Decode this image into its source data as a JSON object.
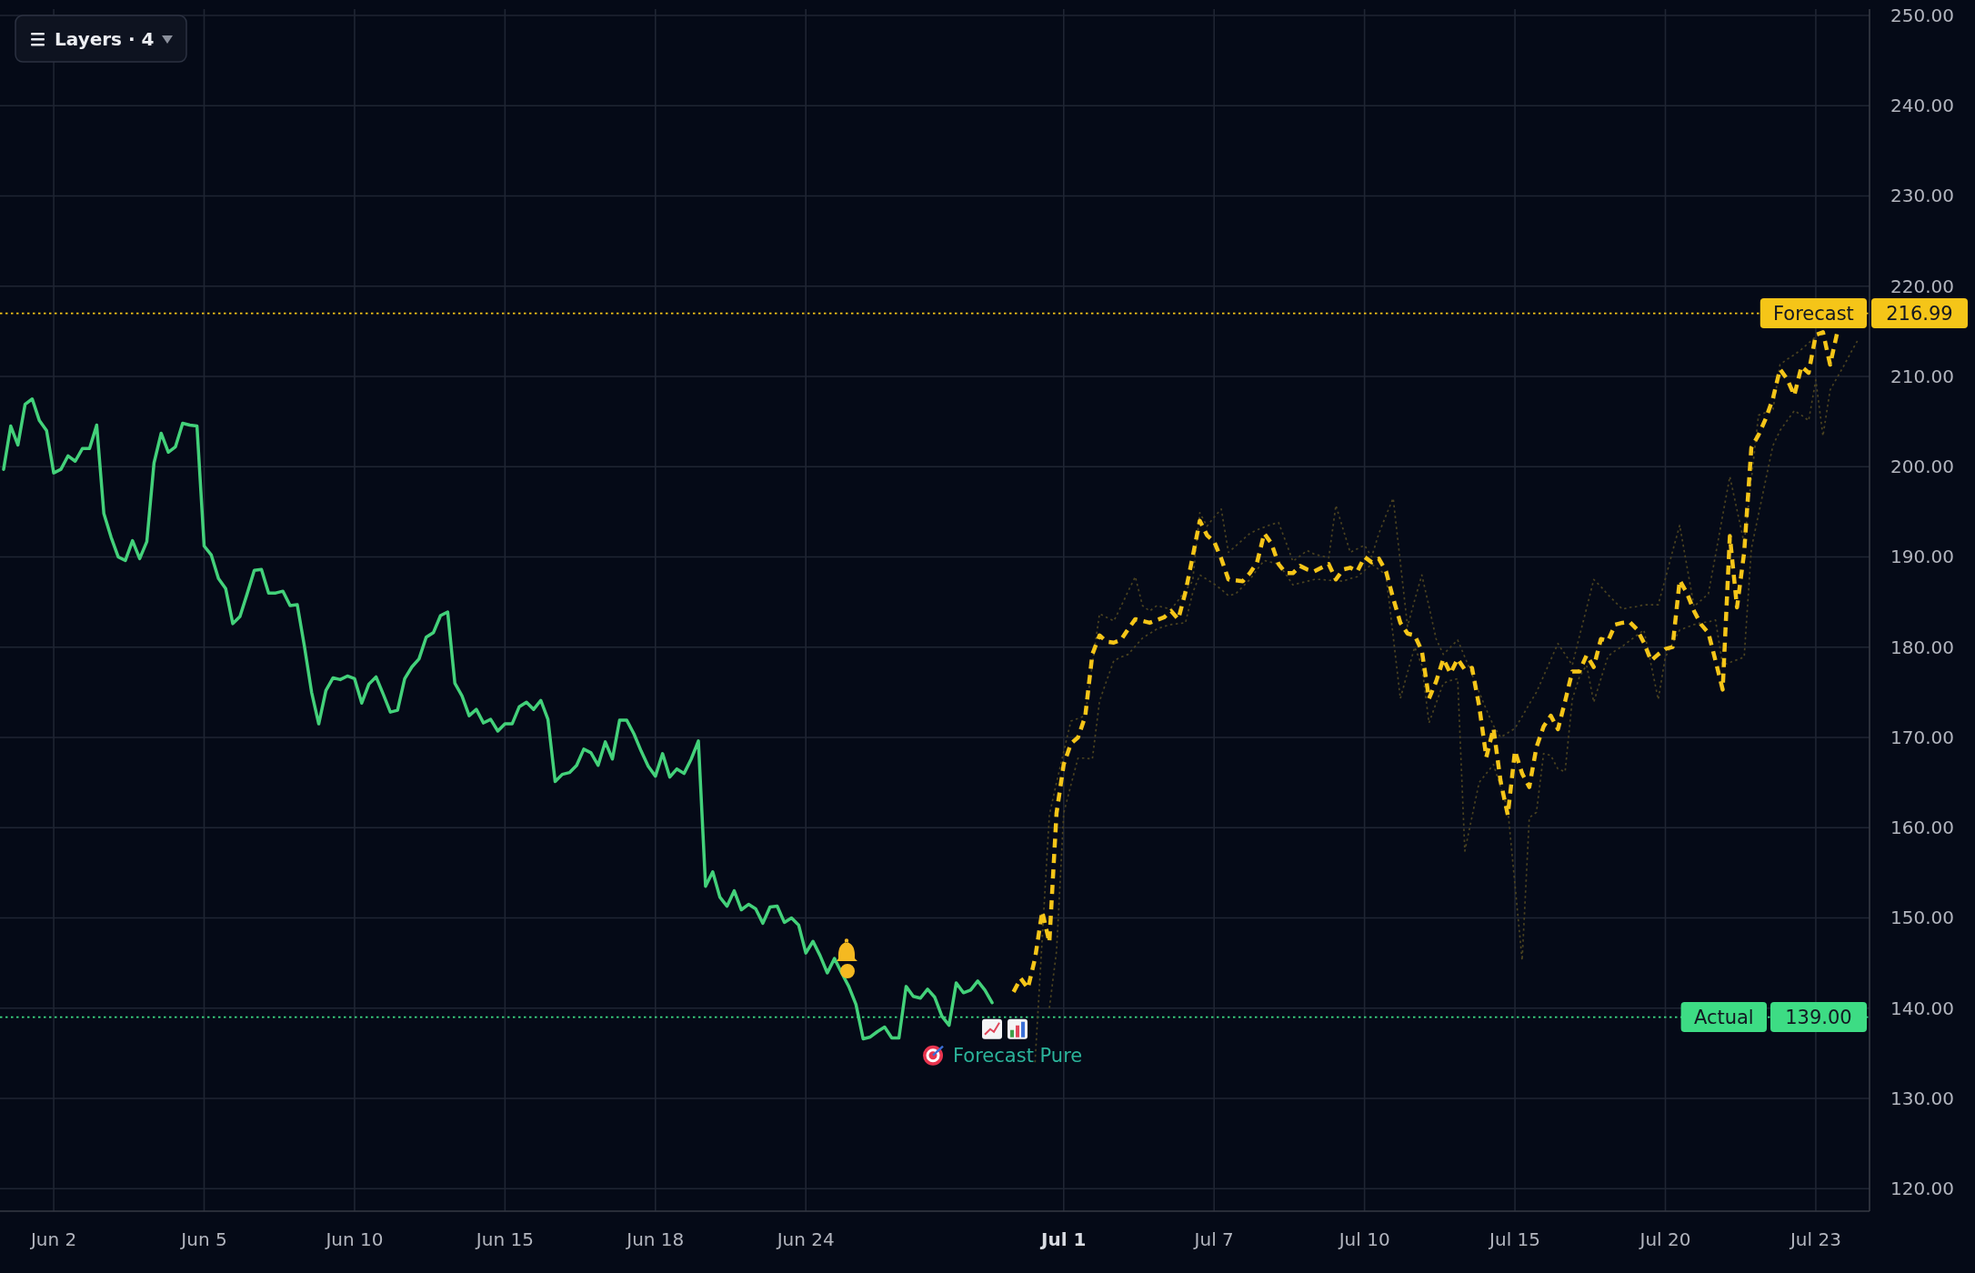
{
  "chart_data": {
    "type": "line",
    "categories": [
      null,
      null,
      null,
      null,
      null,
      null,
      null,
      "Jun 2",
      null,
      null,
      null,
      null,
      null,
      null,
      null,
      null,
      null,
      null,
      null,
      null,
      null,
      null,
      null,
      null,
      null,
      null,
      null,
      null,
      "Jun 5",
      null,
      null,
      null,
      null,
      null,
      null,
      null,
      null,
      null,
      null,
      null,
      null,
      null,
      null,
      null,
      null,
      null,
      null,
      null,
      null,
      "Jun 10",
      null,
      null,
      null,
      null,
      null,
      null,
      null,
      null,
      null,
      null,
      null,
      null,
      null,
      null,
      null,
      null,
      null,
      null,
      null,
      null,
      "Jun 15",
      null,
      null,
      null,
      null,
      null,
      null,
      null,
      null,
      null,
      null,
      null,
      null,
      null,
      null,
      null,
      null,
      null,
      null,
      null,
      null,
      "Jun 18",
      null,
      null,
      null,
      null,
      null,
      null,
      null,
      null,
      null,
      null,
      null,
      null,
      null,
      null,
      null,
      null,
      null,
      null,
      null,
      null,
      "Jun 24",
      null,
      null,
      null,
      null,
      null,
      null,
      null,
      null,
      null,
      null,
      null,
      null,
      null,
      null,
      null,
      null,
      null,
      null,
      null,
      null,
      null,
      null,
      null,
      null,
      null,
      null,
      null,
      null,
      null,
      null,
      null,
      null,
      null,
      null,
      null,
      "Jul 1",
      null,
      null,
      null,
      null,
      null,
      null,
      null,
      null,
      null,
      null,
      null,
      null,
      null,
      null,
      null,
      null,
      null,
      null,
      null,
      null,
      "Jul 7",
      null,
      null,
      null,
      null,
      null,
      null,
      null,
      null,
      null,
      null,
      null,
      null,
      null,
      null,
      null,
      null,
      null,
      null,
      null,
      null,
      "Jul 10",
      null,
      null,
      null,
      null,
      null,
      null,
      null,
      null,
      null,
      null,
      null,
      null,
      null,
      null,
      null,
      null,
      null,
      null,
      null,
      null,
      "Jul 15",
      null,
      null,
      null,
      null,
      null,
      null,
      null,
      null,
      null,
      null,
      null,
      null,
      null,
      null,
      null,
      null,
      null,
      null,
      null,
      null,
      "Jul 20",
      null,
      null,
      null,
      null,
      null,
      null,
      null,
      null,
      null,
      null,
      null,
      null,
      null,
      null,
      null,
      null,
      null,
      null,
      null,
      null,
      "Jul 23",
      null,
      null,
      null,
      null,
      null,
      null,
      null
    ],
    "ylim": [
      117.5,
      250.7
    ],
    "yticks": [
      {
        "value": 120,
        "label": "120.00"
      },
      {
        "value": 130,
        "label": "130.00"
      },
      {
        "value": 140,
        "label": "140.00"
      },
      {
        "value": 150,
        "label": "150.00"
      },
      {
        "value": 160,
        "label": "160.00"
      },
      {
        "value": 170,
        "label": "170.00"
      },
      {
        "value": 180,
        "label": "180.00"
      },
      {
        "value": 190,
        "label": "190.00"
      },
      {
        "value": 200,
        "label": "200.00"
      },
      {
        "value": 210,
        "label": "210.00"
      },
      {
        "value": 220,
        "label": "220.00"
      },
      {
        "value": 230,
        "label": "230.00"
      },
      {
        "value": 240,
        "label": "240.00"
      },
      {
        "value": 250,
        "label": "250.00"
      }
    ],
    "grid": true,
    "series": [
      {
        "color": "#43d17a",
        "line_style": "solid",
        "values": [
          199.7,
          204.5,
          202.4,
          206.9,
          207.5,
          205.1,
          204.0,
          199.3,
          199.7,
          201.2,
          200.6,
          202.0,
          202.0,
          204.6,
          194.8,
          192.2,
          190.0,
          189.6,
          191.8,
          189.8,
          191.7,
          200.4,
          203.7,
          201.6,
          202.2,
          204.8,
          204.6,
          204.5,
          191.2,
          190.2,
          187.6,
          186.5,
          182.6,
          183.4,
          185.9,
          188.5,
          188.6,
          186.0,
          186.0,
          186.2,
          184.6,
          184.7,
          180.1,
          175.0,
          171.5,
          175.2,
          176.6,
          176.4,
          176.8,
          176.5,
          173.8,
          175.9,
          176.7,
          174.8,
          172.8,
          173.0,
          176.5,
          177.8,
          178.7,
          181.1,
          181.6,
          183.5,
          183.9,
          176.0,
          174.6,
          172.4,
          173.1,
          171.6,
          172.0,
          170.7,
          171.5,
          171.5,
          173.4,
          173.9,
          173.1,
          174.1,
          172.0,
          165.1,
          165.9,
          166.1,
          166.9,
          168.7,
          168.3,
          166.9,
          169.5,
          167.6,
          171.9,
          171.9,
          170.4,
          168.5,
          166.8,
          165.7,
          168.2,
          165.6,
          166.5,
          166.0,
          167.6,
          169.6,
          153.5,
          155.1,
          152.3,
          151.3,
          153.0,
          150.9,
          151.5,
          151.0,
          149.4,
          151.2,
          151.3,
          149.5,
          150.0,
          149.2,
          146.1,
          147.4,
          145.8,
          143.9,
          145.5,
          143.9,
          142.4,
          140.4,
          136.6,
          136.8,
          137.4,
          137.9,
          136.7,
          136.7,
          142.4,
          141.3,
          141.1,
          142.1,
          141.2,
          139.1,
          138.1,
          142.8,
          141.7,
          142.0,
          143.0,
          142.0,
          140.6,
          null,
          null,
          null,
          null,
          null,
          null,
          null,
          null,
          null,
          null,
          null,
          null,
          null,
          null,
          null,
          null,
          null,
          null,
          null,
          null,
          null,
          null,
          null,
          null,
          null,
          null,
          null,
          null,
          null,
          null,
          null,
          null,
          null,
          null,
          null,
          null,
          null,
          null,
          null,
          null,
          null,
          null,
          null,
          null,
          null,
          null,
          null,
          null,
          null,
          null,
          null,
          null,
          null,
          null,
          null,
          null,
          null,
          null,
          null,
          null,
          null,
          null,
          null,
          null,
          null,
          null,
          null,
          null,
          null,
          null,
          null,
          null,
          null,
          null,
          null,
          null,
          null,
          null,
          null,
          null,
          null,
          null,
          null,
          null,
          null,
          null,
          null,
          null,
          null,
          null,
          null,
          null,
          null,
          null,
          null,
          null,
          null,
          null,
          null,
          null,
          null,
          null,
          null,
          null,
          null,
          null,
          null,
          null,
          null,
          null,
          null,
          null,
          null,
          null,
          null,
          null,
          null,
          null,
          null,
          null,
          null,
          null
        ]
      },
      {
        "color": "#4a4220",
        "line_style": "dotted",
        "values": [
          null,
          null,
          null,
          null,
          null,
          null,
          null,
          null,
          null,
          null,
          null,
          null,
          null,
          null,
          null,
          null,
          null,
          null,
          null,
          null,
          null,
          null,
          null,
          null,
          null,
          null,
          null,
          null,
          null,
          null,
          null,
          null,
          null,
          null,
          null,
          null,
          null,
          null,
          null,
          null,
          null,
          null,
          null,
          null,
          null,
          null,
          null,
          null,
          null,
          null,
          null,
          null,
          null,
          null,
          null,
          null,
          null,
          null,
          null,
          null,
          null,
          null,
          null,
          null,
          null,
          null,
          null,
          null,
          null,
          null,
          null,
          null,
          null,
          null,
          null,
          null,
          null,
          null,
          null,
          null,
          null,
          null,
          null,
          null,
          null,
          null,
          null,
          null,
          null,
          null,
          null,
          null,
          null,
          null,
          null,
          null,
          null,
          null,
          null,
          null,
          null,
          null,
          null,
          null,
          null,
          null,
          null,
          null,
          null,
          null,
          null,
          null,
          null,
          null,
          null,
          null,
          null,
          null,
          null,
          null,
          null,
          null,
          null,
          null,
          null,
          null,
          null,
          null,
          null,
          null,
          null,
          null,
          null,
          null,
          null,
          null,
          null,
          null,
          null,
          null,
          null,
          null,
          null,
          null,
          134.0,
          147.7,
          161.4,
          165.0,
          168.4,
          171.8,
          172.1,
          172.4,
          178.1,
          183.7,
          183.3,
          182.9,
          184.5,
          186.2,
          187.8,
          184.6,
          184.0,
          184.6,
          184.4,
          184.2,
          185.2,
          186.3,
          187.3,
          194.9,
          193.4,
          194.4,
          195.3,
          190.5,
          191.2,
          191.9,
          192.6,
          193.0,
          193.3,
          193.6,
          193.8,
          191.7,
          189.5,
          190.1,
          190.7,
          190.3,
          190.1,
          189.9,
          195.7,
          193.1,
          190.5,
          190.9,
          191.3,
          190.0,
          192.6,
          194.6,
          196.5,
          189.4,
          182.3,
          185.2,
          188.0,
          184.5,
          180.9,
          179.2,
          180.0,
          180.8,
          178.9,
          177.0,
          175.0,
          173.1,
          171.3,
          170.0,
          170.5,
          171.0,
          172.3,
          173.7,
          175.0,
          176.8,
          178.6,
          180.4,
          179.2,
          178.0,
          181.2,
          184.3,
          187.5,
          186.7,
          185.8,
          185.0,
          184.2,
          184.4,
          184.5,
          184.7,
          184.7,
          184.7,
          187.6,
          190.6,
          193.5,
          189.0,
          184.5,
          185.2,
          185.9,
          190.2,
          194.6,
          198.9,
          195.2,
          191.5,
          198.6,
          205.7,
          206.0,
          206.2,
          211.3,
          211.9,
          212.4,
          213.0,
          213.7,
          214.4,
          215.0,
          null,
          null,
          null,
          null,
          null,
          null
        ]
      },
      {
        "color": "#4a4220",
        "line_style": "dotted",
        "values": [
          null,
          null,
          null,
          null,
          null,
          null,
          null,
          null,
          null,
          null,
          null,
          null,
          null,
          null,
          null,
          null,
          null,
          null,
          null,
          null,
          null,
          null,
          null,
          null,
          null,
          null,
          null,
          null,
          null,
          null,
          null,
          null,
          null,
          null,
          null,
          null,
          null,
          null,
          null,
          null,
          null,
          null,
          null,
          null,
          null,
          null,
          null,
          null,
          null,
          null,
          null,
          null,
          null,
          null,
          null,
          null,
          null,
          null,
          null,
          null,
          null,
          null,
          null,
          null,
          null,
          null,
          null,
          null,
          null,
          null,
          null,
          null,
          null,
          null,
          null,
          null,
          null,
          null,
          null,
          null,
          null,
          null,
          null,
          null,
          null,
          null,
          null,
          null,
          null,
          null,
          null,
          null,
          null,
          null,
          null,
          null,
          null,
          null,
          null,
          null,
          null,
          null,
          null,
          null,
          null,
          null,
          null,
          null,
          null,
          null,
          null,
          null,
          null,
          null,
          null,
          null,
          null,
          null,
          null,
          null,
          null,
          null,
          null,
          null,
          null,
          null,
          null,
          null,
          null,
          null,
          null,
          null,
          null,
          null,
          null,
          null,
          null,
          null,
          null,
          null,
          null,
          null,
          null,
          null,
          null,
          null,
          140.0,
          146.3,
          161.6,
          164.7,
          167.7,
          167.7,
          167.6,
          174.0,
          176.3,
          178.5,
          178.9,
          179.2,
          180.1,
          181.0,
          181.5,
          182.0,
          182.3,
          182.5,
          182.6,
          182.7,
          186.0,
          188.0,
          187.5,
          187.0,
          186.4,
          185.7,
          185.9,
          186.7,
          187.5,
          188.6,
          189.6,
          189.4,
          189.2,
          188.1,
          186.9,
          187.1,
          187.3,
          187.5,
          187.5,
          187.4,
          187.4,
          187.3,
          187.6,
          187.8,
          188.5,
          189.2,
          188.6,
          188.0,
          181.2,
          174.3,
          177.2,
          180.0,
          178.0,
          171.6,
          173.8,
          176.0,
          176.3,
          176.5,
          157.4,
          161.2,
          165.0,
          166.0,
          167.0,
          164.5,
          162.0,
          153.7,
          145.3,
          161.1,
          161.7,
          168.2,
          168.0,
          166.5,
          166.2,
          174.2,
          176.7,
          178.0,
          173.9,
          176.5,
          179.0,
          179.6,
          180.1,
          180.7,
          181.3,
          181.9,
          178.1,
          174.2,
          178.9,
          180.4,
          181.9,
          182.2,
          182.5,
          182.7,
          182.8,
          183.0,
          178.0,
          178.3,
          178.6,
          178.9,
          190.9,
          194.7,
          198.5,
          202.3,
          204.0,
          205.1,
          206.2,
          205.7,
          205.1,
          209.6,
          203.4,
          208.5,
          209.9,
          211.3,
          212.8,
          214.2,
          null
        ]
      },
      {
        "color": "#f5c518",
        "line_style": "dashed",
        "values": [
          null,
          null,
          null,
          null,
          null,
          null,
          null,
          null,
          null,
          null,
          null,
          null,
          null,
          null,
          null,
          null,
          null,
          null,
          null,
          null,
          null,
          null,
          null,
          null,
          null,
          null,
          null,
          null,
          null,
          null,
          null,
          null,
          null,
          null,
          null,
          null,
          null,
          null,
          null,
          null,
          null,
          null,
          null,
          null,
          null,
          null,
          null,
          null,
          null,
          null,
          null,
          null,
          null,
          null,
          null,
          null,
          null,
          null,
          null,
          null,
          null,
          null,
          null,
          null,
          null,
          null,
          null,
          null,
          null,
          null,
          null,
          null,
          null,
          null,
          null,
          null,
          null,
          null,
          null,
          null,
          null,
          null,
          null,
          null,
          null,
          null,
          null,
          null,
          null,
          null,
          null,
          null,
          null,
          null,
          null,
          null,
          null,
          null,
          null,
          null,
          null,
          null,
          null,
          null,
          null,
          null,
          null,
          null,
          null,
          null,
          null,
          null,
          null,
          null,
          null,
          null,
          null,
          null,
          null,
          null,
          null,
          null,
          null,
          null,
          null,
          null,
          null,
          null,
          null,
          null,
          null,
          null,
          null,
          null,
          null,
          null,
          null,
          null,
          null,
          null,
          null,
          141.8,
          143.3,
          142.2,
          145.5,
          150.7,
          147.3,
          161.6,
          167.0,
          169.3,
          170.0,
          172.3,
          179.2,
          181.3,
          180.6,
          180.5,
          180.8,
          182.0,
          183.1,
          182.9,
          182.7,
          183.0,
          183.3,
          184.0,
          183.1,
          186.1,
          190.0,
          194.0,
          192.4,
          191.7,
          189.8,
          187.5,
          187.4,
          187.3,
          188.2,
          189.4,
          192.6,
          191.5,
          189.2,
          188.2,
          188.2,
          189.0,
          188.6,
          188.4,
          188.8,
          189.2,
          187.5,
          188.6,
          188.8,
          188.4,
          190.0,
          189.4,
          189.8,
          188.4,
          185.4,
          182.7,
          181.5,
          181.3,
          179.6,
          174.3,
          176.2,
          178.7,
          177.1,
          178.7,
          177.5,
          177.7,
          173.5,
          167.8,
          171.0,
          165.1,
          161.4,
          168.5,
          166.0,
          164.5,
          168.9,
          171.2,
          172.4,
          170.9,
          174.0,
          177.3,
          177.3,
          179.1,
          177.8,
          180.9,
          180.7,
          182.5,
          182.7,
          182.8,
          182.0,
          180.5,
          178.5,
          179.2,
          179.8,
          180.0,
          187.4,
          186.0,
          184.0,
          182.5,
          181.6,
          178.5,
          175.3,
          192.3,
          184.4,
          190.5,
          202.1,
          203.5,
          205.3,
          207.5,
          210.8,
          209.7,
          207.9,
          211.1,
          210.4,
          214.6,
          214.9,
          211.3,
          214.9,
          null,
          null,
          null,
          null
        ]
      }
    ],
    "ref_lines": [
      {
        "axis": "y",
        "value": 216.99,
        "label": "Forecast",
        "color": "#f5c518",
        "line_style": "dotted"
      },
      {
        "axis": "y",
        "value": 139.0,
        "label": "Actual",
        "color": "#3ddc84",
        "line_style": "dotted"
      }
    ],
    "annotations": [
      "Layers · 4",
      "Forecast Pure",
      "216.99",
      "139.00"
    ]
  }
}
